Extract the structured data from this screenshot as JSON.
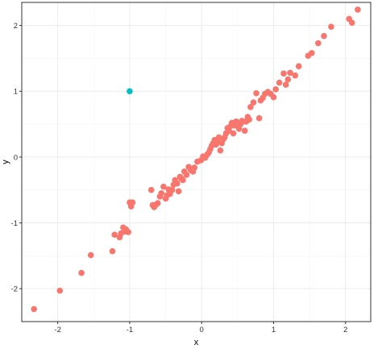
{
  "chart_data": {
    "type": "scatter",
    "xlabel": "x",
    "ylabel": "y",
    "xlim": [
      -2.5,
      2.35
    ],
    "ylim": [
      -2.5,
      2.35
    ],
    "x_ticks": [
      -2,
      -1,
      0,
      1,
      2
    ],
    "y_ticks": [
      -2,
      -1,
      0,
      1,
      2
    ],
    "x_tick_labels": [
      "-2",
      "-1",
      "0",
      "1",
      "2"
    ],
    "y_tick_labels": [
      "-2",
      "-1",
      "0",
      "1",
      "2"
    ],
    "grid": true,
    "legend": "none",
    "colors": {
      "main": "#F8766D",
      "outlier": "#00BFC4",
      "grid_major": "#EBEBEB",
      "grid_minor": "#F5F5F5",
      "border": "#333333"
    },
    "series": [
      {
        "color": "main",
        "points": [
          [
            -2.33,
            -2.31
          ],
          [
            -1.97,
            -2.03
          ],
          [
            -1.67,
            -1.76
          ],
          [
            -1.54,
            -1.49
          ],
          [
            -1.24,
            -1.43
          ],
          [
            -1.21,
            -1.18
          ],
          [
            -1.14,
            -1.22
          ],
          [
            -1.12,
            -1.16
          ],
          [
            -1.09,
            -1.07
          ],
          [
            -1.06,
            -1.13
          ],
          [
            -1.05,
            -1.1
          ],
          [
            -1.02,
            -1.14
          ],
          [
            -1.0,
            -0.69
          ],
          [
            -0.98,
            -0.75
          ],
          [
            -0.96,
            -0.69
          ],
          [
            -0.7,
            -0.5
          ],
          [
            -0.68,
            -0.73
          ],
          [
            -0.66,
            -0.76
          ],
          [
            -0.63,
            -0.72
          ],
          [
            -0.61,
            -0.7
          ],
          [
            -0.58,
            -0.6
          ],
          [
            -0.56,
            -0.55
          ],
          [
            -0.53,
            -0.45
          ],
          [
            -0.5,
            -0.63
          ],
          [
            -0.48,
            -0.58
          ],
          [
            -0.46,
            -0.49
          ],
          [
            -0.44,
            -0.56
          ],
          [
            -0.41,
            -0.5
          ],
          [
            -0.39,
            -0.42
          ],
          [
            -0.37,
            -0.35
          ],
          [
            -0.34,
            -0.4
          ],
          [
            -0.32,
            -0.52
          ],
          [
            -0.3,
            -0.3
          ],
          [
            -0.28,
            -0.33
          ],
          [
            -0.26,
            -0.35
          ],
          [
            -0.24,
            -0.22
          ],
          [
            -0.21,
            -0.27
          ],
          [
            -0.18,
            -0.15
          ],
          [
            -0.15,
            -0.2
          ],
          [
            -0.12,
            -0.22
          ],
          [
            -0.1,
            -0.16
          ],
          [
            -0.06,
            -0.07
          ],
          [
            -0.01,
            -0.05
          ],
          [
            0.02,
            0.01
          ],
          [
            0.05,
            -0.01
          ],
          [
            0.08,
            0.04
          ],
          [
            0.1,
            0.07
          ],
          [
            0.12,
            0.12
          ],
          [
            0.14,
            0.17
          ],
          [
            0.16,
            0.21
          ],
          [
            0.18,
            0.26
          ],
          [
            0.2,
            0.19
          ],
          [
            0.22,
            0.23
          ],
          [
            0.24,
            0.3
          ],
          [
            0.26,
            0.1
          ],
          [
            0.28,
            0.21
          ],
          [
            0.3,
            0.27
          ],
          [
            0.32,
            0.3
          ],
          [
            0.34,
            0.36
          ],
          [
            0.36,
            0.44
          ],
          [
            0.38,
            0.4
          ],
          [
            0.4,
            0.47
          ],
          [
            0.42,
            0.52
          ],
          [
            0.44,
            0.36
          ],
          [
            0.46,
            0.48
          ],
          [
            0.48,
            0.54
          ],
          [
            0.5,
            0.49
          ],
          [
            0.52,
            0.43
          ],
          [
            0.54,
            0.5
          ],
          [
            0.56,
            0.55
          ],
          [
            0.58,
            0.54
          ],
          [
            0.6,
            0.4
          ],
          [
            0.62,
            0.54
          ],
          [
            0.64,
            0.61
          ],
          [
            0.66,
            0.57
          ],
          [
            0.68,
            0.76
          ],
          [
            0.72,
            0.83
          ],
          [
            0.76,
            0.97
          ],
          [
            0.8,
            0.59
          ],
          [
            0.82,
            0.86
          ],
          [
            0.85,
            0.9
          ],
          [
            0.88,
            0.96
          ],
          [
            0.92,
            0.99
          ],
          [
            0.96,
            0.96
          ],
          [
            1.0,
            0.91
          ],
          [
            1.03,
            1.03
          ],
          [
            1.08,
            1.13
          ],
          [
            1.14,
            1.27
          ],
          [
            1.17,
            1.1
          ],
          [
            1.2,
            1.18
          ],
          [
            1.23,
            1.28
          ],
          [
            1.3,
            1.24
          ],
          [
            1.35,
            1.38
          ],
          [
            1.48,
            1.54
          ],
          [
            1.53,
            1.58
          ],
          [
            1.62,
            1.73
          ],
          [
            1.7,
            1.84
          ],
          [
            1.8,
            1.98
          ],
          [
            2.05,
            2.1
          ],
          [
            2.09,
            2.04
          ],
          [
            2.17,
            2.24
          ]
        ]
      },
      {
        "color": "outlier",
        "points": [
          [
            -1.0,
            1.0
          ]
        ]
      }
    ]
  }
}
